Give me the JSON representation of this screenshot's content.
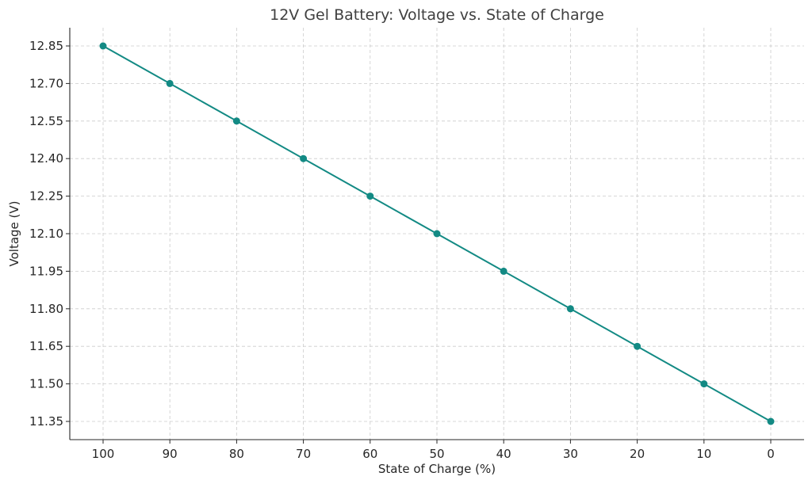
{
  "chart_data": {
    "type": "line",
    "title": "12V Gel Battery: Voltage vs. State of Charge",
    "xlabel": "State of Charge (%)",
    "ylabel": "Voltage (V)",
    "x_axis_reversed": true,
    "xlim": [
      100,
      0
    ],
    "ylim": [
      11.35,
      12.85
    ],
    "x_ticks": [
      "100",
      "90",
      "80",
      "70",
      "60",
      "50",
      "40",
      "30",
      "20",
      "10",
      "0"
    ],
    "y_ticks": [
      "11.35",
      "11.50",
      "11.65",
      "11.80",
      "11.95",
      "12.10",
      "12.25",
      "12.40",
      "12.55",
      "12.70",
      "12.85"
    ],
    "grid": true,
    "legend": "none",
    "series": [
      {
        "color": "#138a84",
        "marker": "circle",
        "x": [
          100,
          90,
          80,
          70,
          60,
          50,
          40,
          30,
          20,
          10,
          0
        ],
        "y": [
          12.85,
          12.7,
          12.55,
          12.4,
          12.25,
          12.1,
          11.95,
          11.8,
          11.65,
          11.5,
          11.35
        ]
      }
    ]
  }
}
